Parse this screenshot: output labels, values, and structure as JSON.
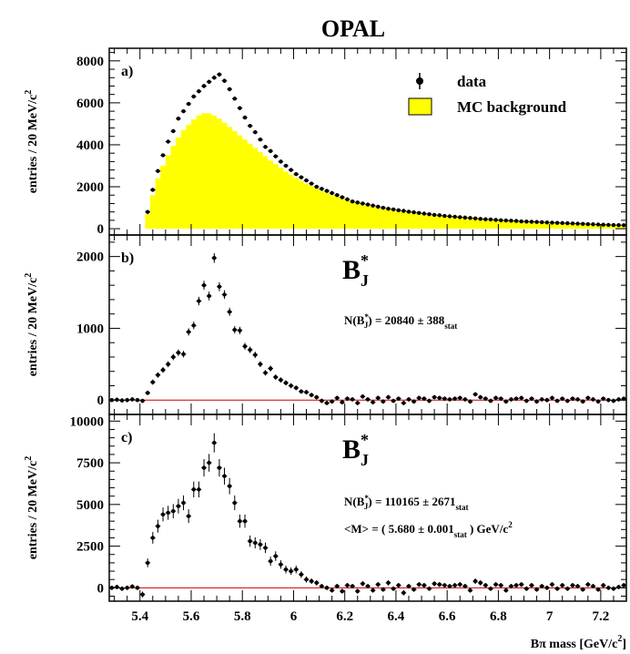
{
  "title": "OPAL",
  "xlabel_html": "Bπ mass [GeV/c²]",
  "xlabel": {
    "main": "Bπ mass [GeV/c",
    "sup": "2",
    "close": "]"
  },
  "x_ticks": [
    "5.4",
    "5.6",
    "5.8",
    "6",
    "6.2",
    "6.4",
    "6.6",
    "6.8",
    "7",
    "7.2"
  ],
  "xlim": [
    5.28,
    7.3
  ],
  "colors": {
    "mc_fill": "#ffff00",
    "fit_line": "#cc0000",
    "data": "#000000"
  },
  "panels": [
    {
      "label": "a)",
      "ylabel": {
        "main": "entries / 20 MeV/c",
        "sup": "2"
      },
      "yticks": [
        0,
        2000,
        4000,
        6000,
        8000
      ],
      "ylim": [
        -300,
        8600
      ],
      "legend": [
        {
          "symbol": "data-point",
          "label": "data"
        },
        {
          "symbol": "yellow-box",
          "label": "MC background"
        }
      ]
    },
    {
      "label": "b)",
      "ylabel": {
        "main": "entries / 20 MeV/c",
        "sup": "2"
      },
      "yticks": [
        0,
        1000,
        2000
      ],
      "ylim": [
        -200,
        2300
      ],
      "annotation": {
        "title": "B",
        "title_sup": "*",
        "title_sub": "J",
        "n_prefix": "N(B",
        "n_sup": "*",
        "n_sub": "J",
        "n_value": ") = 20840 ± 388",
        "n_stat": "stat"
      }
    },
    {
      "label": "c)",
      "ylabel": {
        "main": "entries / 20 MeV/c",
        "sup": "2"
      },
      "yticks": [
        0,
        2500,
        5000,
        7500,
        10000
      ],
      "ylim": [
        -800,
        10400
      ],
      "annotation": {
        "title": "B",
        "title_sup": "*",
        "title_sub": "J",
        "n_prefix": "N(B",
        "n_sup": "*",
        "n_sub": "J",
        "n_value": ") = 110165 ± 2671",
        "n_stat": "stat",
        "m_prefix": "<M> = ( 5.680 ± 0.001",
        "m_stat": "stat",
        "m_suffix": " ) GeV/c",
        "m_sup": "2"
      }
    }
  ],
  "chart_data": [
    {
      "type": "area",
      "title": "OPAL",
      "panel": "a)",
      "xlabel": "Bπ mass [GeV/c²]",
      "ylabel": "entries / 20 MeV/c²",
      "xlim": [
        5.28,
        7.3
      ],
      "ylim": [
        -300,
        8600
      ],
      "series": [
        {
          "name": "data",
          "kind": "points",
          "x": [
            5.43,
            5.45,
            5.47,
            5.49,
            5.51,
            5.53,
            5.55,
            5.57,
            5.59,
            5.61,
            5.63,
            5.65,
            5.67,
            5.69,
            5.71,
            5.73,
            5.75,
            5.77,
            5.79,
            5.81,
            5.83,
            5.85,
            5.87,
            5.89,
            5.91,
            5.93,
            5.95,
            5.97,
            5.99,
            6.01,
            6.03,
            6.05,
            6.07,
            6.09,
            6.11,
            6.13,
            6.15,
            6.17,
            6.19,
            6.21,
            6.23,
            6.25,
            6.27,
            6.29,
            6.31,
            6.33,
            6.35,
            6.37,
            6.39,
            6.41,
            6.43,
            6.45,
            6.47,
            6.49,
            6.51,
            6.53,
            6.55,
            6.57,
            6.59,
            6.61,
            6.63,
            6.65,
            6.67,
            6.69,
            6.71,
            6.73,
            6.75,
            6.77,
            6.79,
            6.81,
            6.83,
            6.85,
            6.87,
            6.89,
            6.91,
            6.93,
            6.95,
            6.97,
            6.99,
            7.01,
            7.03,
            7.05,
            7.07,
            7.09,
            7.11,
            7.13,
            7.15,
            7.17,
            7.19,
            7.21,
            7.23,
            7.25,
            7.27,
            7.29
          ],
          "y": [
            800,
            1850,
            2750,
            3500,
            4150,
            4650,
            5250,
            5600,
            5950,
            6300,
            6550,
            6800,
            7000,
            7200,
            7350,
            7050,
            6650,
            6200,
            5750,
            5300,
            4900,
            4600,
            4250,
            3900,
            3700,
            3450,
            3200,
            3000,
            2800,
            2600,
            2450,
            2300,
            2150,
            2000,
            1900,
            1800,
            1700,
            1600,
            1500,
            1400,
            1300,
            1250,
            1200,
            1150,
            1100,
            1050,
            1000,
            950,
            920,
            880,
            850,
            810,
            780,
            750,
            720,
            690,
            660,
            640,
            610,
            590,
            570,
            550,
            530,
            510,
            490,
            470,
            450,
            440,
            420,
            400,
            390,
            380,
            370,
            350,
            340,
            330,
            320,
            310,
            300,
            290,
            280,
            270,
            260,
            250,
            240,
            230,
            220,
            210,
            200,
            190,
            180,
            175,
            170,
            165
          ]
        },
        {
          "name": "MC background",
          "kind": "histogram",
          "x": [
            5.43,
            5.45,
            5.47,
            5.49,
            5.51,
            5.53,
            5.55,
            5.57,
            5.59,
            5.61,
            5.63,
            5.65,
            5.67,
            5.69,
            5.71,
            5.73,
            5.75,
            5.77,
            5.79,
            5.81,
            5.83,
            5.85,
            5.87,
            5.89,
            5.91,
            5.93,
            5.95,
            5.97,
            5.99,
            6.01,
            6.03,
            6.05,
            6.07,
            6.09,
            6.11,
            6.13,
            6.15,
            6.17,
            6.19,
            6.21,
            6.23,
            6.25,
            6.27,
            6.29,
            6.31,
            6.33,
            6.35,
            6.37,
            6.39,
            6.41,
            6.43,
            6.45,
            6.47,
            6.49,
            6.51,
            6.53,
            6.55,
            6.57,
            6.59,
            6.61,
            6.63,
            6.65,
            6.67,
            6.69,
            6.71,
            6.73,
            6.75,
            6.77,
            6.79,
            6.81,
            6.83,
            6.85,
            6.87,
            6.89,
            6.91,
            6.93,
            6.95,
            6.97,
            6.99,
            7.01,
            7.03,
            7.05,
            7.07,
            7.09,
            7.11,
            7.13,
            7.15,
            7.17,
            7.19,
            7.21,
            7.23,
            7.25,
            7.27,
            7.29
          ],
          "y": [
            700,
            1600,
            2400,
            3000,
            3500,
            3950,
            4350,
            4700,
            4950,
            5200,
            5400,
            5500,
            5500,
            5400,
            5250,
            5050,
            4850,
            4650,
            4450,
            4250,
            4050,
            3850,
            3650,
            3450,
            3250,
            3080,
            2900,
            2730,
            2570,
            2420,
            2280,
            2150,
            2030,
            1910,
            1800,
            1700,
            1610,
            1520,
            1440,
            1360,
            1280,
            1220,
            1160,
            1100,
            1050,
            1000,
            950,
            910,
            870,
            830,
            800,
            770,
            740,
            710,
            680,
            650,
            630,
            610,
            590,
            570,
            550,
            530,
            510,
            490,
            470,
            450,
            440,
            420,
            400,
            390,
            380,
            360,
            350,
            340,
            330,
            320,
            310,
            300,
            290,
            280,
            270,
            260,
            250,
            240,
            230,
            220,
            210,
            200,
            190,
            185,
            180,
            175,
            170,
            165
          ]
        }
      ]
    },
    {
      "type": "scatter",
      "panel": "b)",
      "title": "B*J",
      "annotation": "N(B*J) = 20840 ± 388 stat",
      "ylabel": "entries / 20 MeV/c²",
      "xlim": [
        5.28,
        7.3
      ],
      "ylim": [
        -200,
        2300
      ],
      "series": [
        {
          "kind": "points",
          "x": [
            5.29,
            5.31,
            5.33,
            5.35,
            5.37,
            5.39,
            5.41,
            5.43,
            5.45,
            5.47,
            5.49,
            5.51,
            5.53,
            5.55,
            5.57,
            5.59,
            5.61,
            5.63,
            5.65,
            5.67,
            5.69,
            5.71,
            5.73,
            5.75,
            5.77,
            5.79,
            5.81,
            5.83,
            5.85,
            5.87,
            5.89,
            5.91,
            5.93,
            5.95,
            5.97,
            5.99,
            6.01,
            6.03,
            6.05,
            6.07,
            6.09,
            6.11,
            6.13,
            6.15,
            6.17,
            6.19,
            6.21,
            6.23,
            6.25,
            6.27,
            6.29,
            6.31,
            6.33,
            6.35,
            6.37,
            6.39,
            6.41,
            6.43,
            6.45,
            6.47,
            6.49,
            6.51,
            6.53,
            6.55,
            6.57,
            6.59,
            6.61,
            6.63,
            6.65,
            6.67,
            6.69,
            6.71,
            6.73,
            6.75,
            6.77,
            6.79,
            6.81,
            6.83,
            6.85,
            6.87,
            6.89,
            6.91,
            6.93,
            6.95,
            6.97,
            6.99,
            7.01,
            7.03,
            7.05,
            7.07,
            7.09,
            7.11,
            7.13,
            7.15,
            7.17,
            7.19,
            7.21,
            7.23,
            7.25,
            7.27,
            7.29
          ],
          "y": [
            0,
            5,
            -5,
            0,
            10,
            0,
            -10,
            100,
            250,
            350,
            420,
            500,
            600,
            660,
            640,
            950,
            1040,
            1380,
            1600,
            1450,
            1980,
            1580,
            1470,
            1230,
            980,
            970,
            750,
            700,
            630,
            500,
            380,
            440,
            320,
            280,
            240,
            200,
            170,
            120,
            110,
            70,
            40,
            -10,
            -40,
            -20,
            30,
            -30,
            20,
            10,
            -40,
            50,
            10,
            -30,
            30,
            -20,
            40,
            -10,
            20,
            -40,
            10,
            -20,
            30,
            20,
            -10,
            40,
            30,
            20,
            10,
            20,
            30,
            10,
            -20,
            80,
            40,
            20,
            -10,
            30,
            20,
            -20,
            10,
            20,
            30,
            -10,
            20,
            -20,
            10,
            0,
            30,
            -10,
            20,
            -10,
            20,
            10,
            -20,
            30,
            10,
            -20,
            20,
            0,
            -10,
            10,
            20
          ]
        }
      ]
    },
    {
      "type": "scatter",
      "panel": "c)",
      "title": "B*J",
      "annotation": "N(B*J) = 110165 ± 2671 stat; <M> = ( 5.680 ± 0.001 stat ) GeV/c²",
      "xlabel": "Bπ mass [GeV/c²]",
      "ylabel": "entries / 20 MeV/c²",
      "xlim": [
        5.28,
        7.3
      ],
      "ylim": [
        -800,
        10400
      ],
      "series": [
        {
          "kind": "points",
          "x": [
            5.29,
            5.31,
            5.33,
            5.35,
            5.37,
            5.39,
            5.41,
            5.43,
            5.45,
            5.47,
            5.49,
            5.51,
            5.53,
            5.55,
            5.57,
            5.59,
            5.61,
            5.63,
            5.65,
            5.67,
            5.69,
            5.71,
            5.73,
            5.75,
            5.77,
            5.79,
            5.81,
            5.83,
            5.85,
            5.87,
            5.89,
            5.91,
            5.93,
            5.95,
            5.97,
            5.99,
            6.01,
            6.03,
            6.05,
            6.07,
            6.09,
            6.11,
            6.13,
            6.15,
            6.17,
            6.19,
            6.21,
            6.23,
            6.25,
            6.27,
            6.29,
            6.31,
            6.33,
            6.35,
            6.37,
            6.39,
            6.41,
            6.43,
            6.45,
            6.47,
            6.49,
            6.51,
            6.53,
            6.55,
            6.57,
            6.59,
            6.61,
            6.63,
            6.65,
            6.67,
            6.69,
            6.71,
            6.73,
            6.75,
            6.77,
            6.79,
            6.81,
            6.83,
            6.85,
            6.87,
            6.89,
            6.91,
            6.93,
            6.95,
            6.97,
            6.99,
            7.01,
            7.03,
            7.05,
            7.07,
            7.09,
            7.11,
            7.13,
            7.15,
            7.17,
            7.19,
            7.21,
            7.23,
            7.25,
            7.27,
            7.29
          ],
          "y": [
            0,
            50,
            -50,
            0,
            80,
            0,
            -400,
            1500,
            3000,
            3700,
            4400,
            4500,
            4600,
            4900,
            5100,
            4300,
            5900,
            5900,
            7200,
            7500,
            8700,
            7200,
            6700,
            6100,
            5100,
            4000,
            4000,
            2800,
            2700,
            2600,
            2400,
            1600,
            1900,
            1400,
            1100,
            1000,
            1100,
            800,
            500,
            400,
            300,
            100,
            0,
            -150,
            100,
            -200,
            150,
            100,
            -200,
            250,
            100,
            -150,
            200,
            -100,
            300,
            -50,
            150,
            -300,
            100,
            -100,
            200,
            150,
            -50,
            250,
            200,
            150,
            100,
            150,
            200,
            100,
            -150,
            400,
            300,
            150,
            -50,
            200,
            150,
            -150,
            100,
            150,
            200,
            -50,
            150,
            -100,
            100,
            0,
            200,
            -50,
            150,
            -50,
            150,
            100,
            -100,
            200,
            100,
            -100,
            150,
            0,
            -50,
            50,
            150
          ]
        }
      ]
    }
  ]
}
